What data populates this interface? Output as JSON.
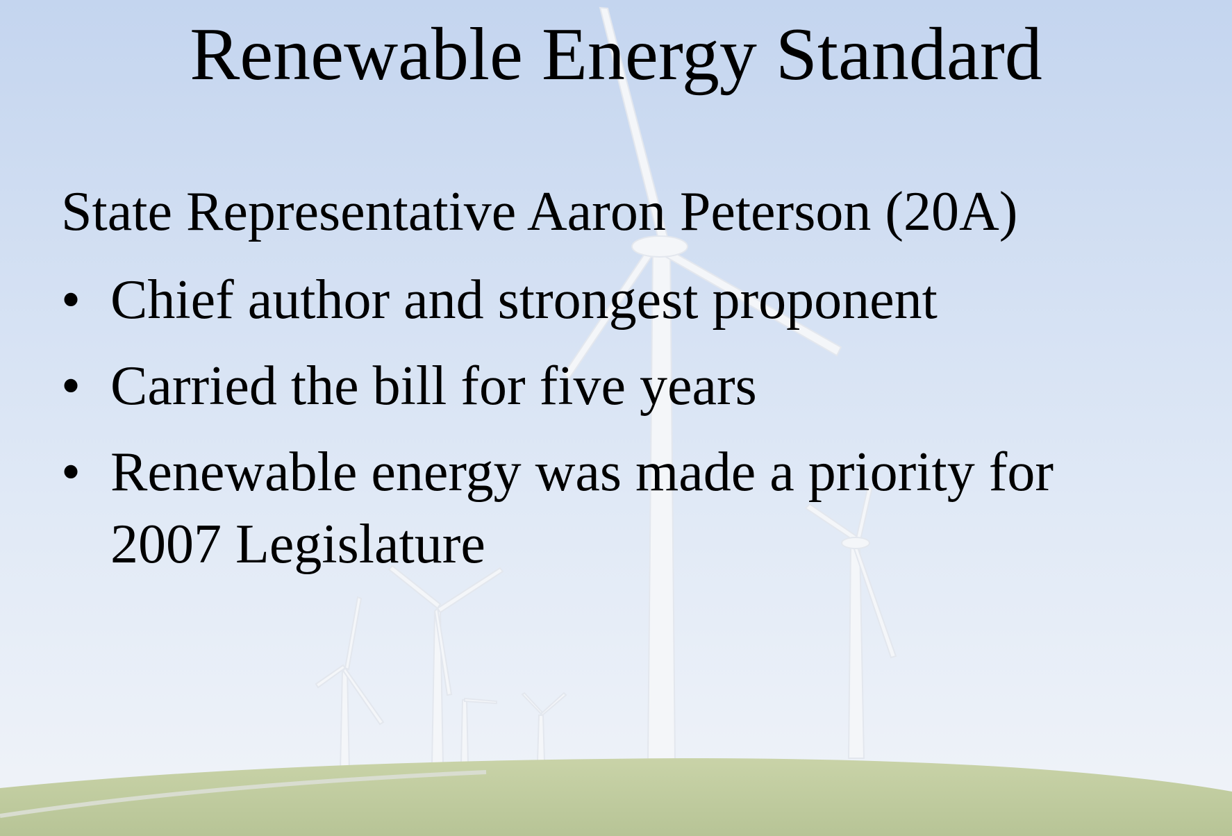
{
  "slide": {
    "title": "Renewable Energy Standard",
    "subtitle": "State Representative Aaron Peterson (20A)",
    "bullets": [
      "Chief author and strongest proponent",
      "Carried the bill for five years",
      "Renewable energy was made a priority for 2007 Legislature"
    ]
  }
}
